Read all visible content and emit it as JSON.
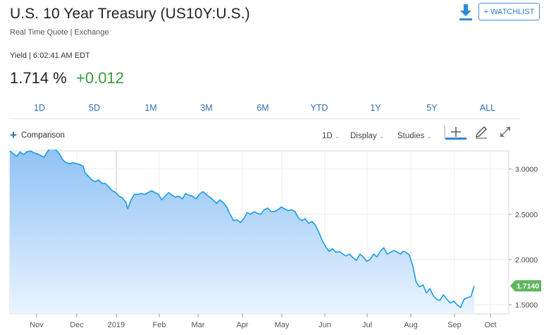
{
  "header": {
    "title": "U.S. 10 Year Treasury (US10Y:U.S.)",
    "subtitle": "Real Time Quote | Exchange",
    "yield_meta": "Yield | 6:02:41 AM EDT",
    "price": "1.714 %",
    "change": "+0.012",
    "change_color": "#3a9a3a",
    "watchlist_label": "+ WATCHLIST",
    "download_icon": "download-icon"
  },
  "ranges": [
    "1D",
    "5D",
    "1M",
    "3M",
    "6M",
    "YTD",
    "1Y",
    "5Y",
    "ALL"
  ],
  "toolbar": {
    "comparison_label": "Comparison",
    "interval_label": "1D",
    "display_label": "Display",
    "studies_label": "Studies",
    "icons": [
      "crosshair-icon",
      "pencil-icon",
      "expand-icon"
    ]
  },
  "chart_data": {
    "type": "area",
    "title": "",
    "xlabel": "",
    "ylabel": "",
    "x_ticks": [
      "Nov",
      "Dec",
      "2019",
      "Feb",
      "Mar",
      "Apr",
      "May",
      "Jun",
      "Jul",
      "Aug",
      "Sep",
      "Oct"
    ],
    "y_ticks": [
      "1.5000",
      "2.0000",
      "2.5000",
      "3.0000"
    ],
    "ylim": [
      1.4,
      3.2
    ],
    "last_value_label": "1.7140",
    "line_color": "#1a9be6",
    "fill_top_color": "#8fc2f5",
    "fill_bottom_color": "#eaf4fe",
    "last_badge_color": "#5fb65f",
    "grid": true,
    "series": [
      {
        "values": [
          [
            0,
            3.2
          ],
          [
            2,
            3.17
          ],
          [
            4,
            3.14
          ],
          [
            6,
            3.19
          ],
          [
            8,
            3.16
          ],
          [
            10,
            3.19
          ],
          [
            12,
            3.2
          ],
          [
            14,
            3.18
          ],
          [
            16,
            3.17
          ],
          [
            18,
            3.15
          ],
          [
            20,
            3.13
          ],
          [
            21,
            3.16
          ],
          [
            23,
            3.22
          ],
          [
            25,
            3.23
          ],
          [
            27,
            3.21
          ],
          [
            29,
            3.17
          ],
          [
            31,
            3.1
          ],
          [
            33,
            3.07
          ],
          [
            35,
            3.06
          ],
          [
            37,
            3.07
          ],
          [
            39,
            3.06
          ],
          [
            41,
            3.05
          ],
          [
            43,
            3.03
          ],
          [
            44,
            2.96
          ],
          [
            46,
            2.92
          ],
          [
            48,
            2.88
          ],
          [
            50,
            2.86
          ],
          [
            52,
            2.88
          ],
          [
            54,
            2.84
          ],
          [
            56,
            2.84
          ],
          [
            58,
            2.8
          ],
          [
            60,
            2.76
          ],
          [
            62,
            2.74
          ],
          [
            64,
            2.7
          ],
          [
            66,
            2.68
          ],
          [
            68,
            2.63
          ],
          [
            69,
            2.56
          ],
          [
            71,
            2.66
          ],
          [
            73,
            2.72
          ],
          [
            75,
            2.72
          ],
          [
            77,
            2.73
          ],
          [
            79,
            2.72
          ],
          [
            81,
            2.74
          ],
          [
            83,
            2.76
          ],
          [
            85,
            2.74
          ],
          [
            87,
            2.72
          ],
          [
            89,
            2.66
          ],
          [
            91,
            2.7
          ],
          [
            93,
            2.74
          ],
          [
            95,
            2.71
          ],
          [
            97,
            2.69
          ],
          [
            99,
            2.7
          ],
          [
            101,
            2.67
          ],
          [
            103,
            2.73
          ],
          [
            105,
            2.71
          ],
          [
            107,
            2.7
          ],
          [
            109,
            2.67
          ],
          [
            111,
            2.72
          ],
          [
            113,
            2.75
          ],
          [
            115,
            2.72
          ],
          [
            117,
            2.69
          ],
          [
            119,
            2.66
          ],
          [
            121,
            2.62
          ],
          [
            123,
            2.66
          ],
          [
            125,
            2.63
          ],
          [
            127,
            2.58
          ],
          [
            129,
            2.5
          ],
          [
            131,
            2.43
          ],
          [
            133,
            2.44
          ],
          [
            135,
            2.41
          ],
          [
            137,
            2.45
          ],
          [
            139,
            2.52
          ],
          [
            141,
            2.5
          ],
          [
            143,
            2.53
          ],
          [
            145,
            2.51
          ],
          [
            147,
            2.5
          ],
          [
            149,
            2.55
          ],
          [
            151,
            2.57
          ],
          [
            153,
            2.53
          ],
          [
            155,
            2.53
          ],
          [
            157,
            2.55
          ],
          [
            159,
            2.58
          ],
          [
            161,
            2.56
          ],
          [
            163,
            2.54
          ],
          [
            165,
            2.55
          ],
          [
            167,
            2.53
          ],
          [
            169,
            2.46
          ],
          [
            171,
            2.43
          ],
          [
            173,
            2.45
          ],
          [
            175,
            2.4
          ],
          [
            177,
            2.42
          ],
          [
            179,
            2.38
          ],
          [
            181,
            2.3
          ],
          [
            183,
            2.21
          ],
          [
            185,
            2.14
          ],
          [
            187,
            2.09
          ],
          [
            189,
            2.12
          ],
          [
            191,
            2.08
          ],
          [
            193,
            2.09
          ],
          [
            195,
            2.06
          ],
          [
            197,
            2.04
          ],
          [
            199,
            2.06
          ],
          [
            201,
            2.02
          ],
          [
            203,
            1.99
          ],
          [
            205,
            2.06
          ],
          [
            207,
            2.03
          ],
          [
            209,
            1.98
          ],
          [
            211,
            2.0
          ],
          [
            213,
            2.06
          ],
          [
            215,
            2.03
          ],
          [
            217,
            2.09
          ],
          [
            219,
            2.13
          ],
          [
            221,
            2.06
          ],
          [
            223,
            2.08
          ],
          [
            225,
            2.1
          ],
          [
            227,
            2.08
          ],
          [
            229,
            2.06
          ],
          [
            230,
            2.09
          ],
          [
            232,
            2.08
          ],
          [
            234,
            2.05
          ],
          [
            236,
            1.93
          ],
          [
            238,
            1.75
          ],
          [
            240,
            1.7
          ],
          [
            242,
            1.72
          ],
          [
            244,
            1.63
          ],
          [
            246,
            1.68
          ],
          [
            248,
            1.6
          ],
          [
            250,
            1.56
          ],
          [
            252,
            1.55
          ],
          [
            254,
            1.61
          ],
          [
            256,
            1.56
          ],
          [
            258,
            1.52
          ],
          [
            260,
            1.54
          ],
          [
            262,
            1.5
          ],
          [
            264,
            1.47
          ],
          [
            266,
            1.56
          ],
          [
            268,
            1.58
          ],
          [
            270,
            1.59
          ],
          [
            272,
            1.71
          ]
        ]
      }
    ]
  }
}
